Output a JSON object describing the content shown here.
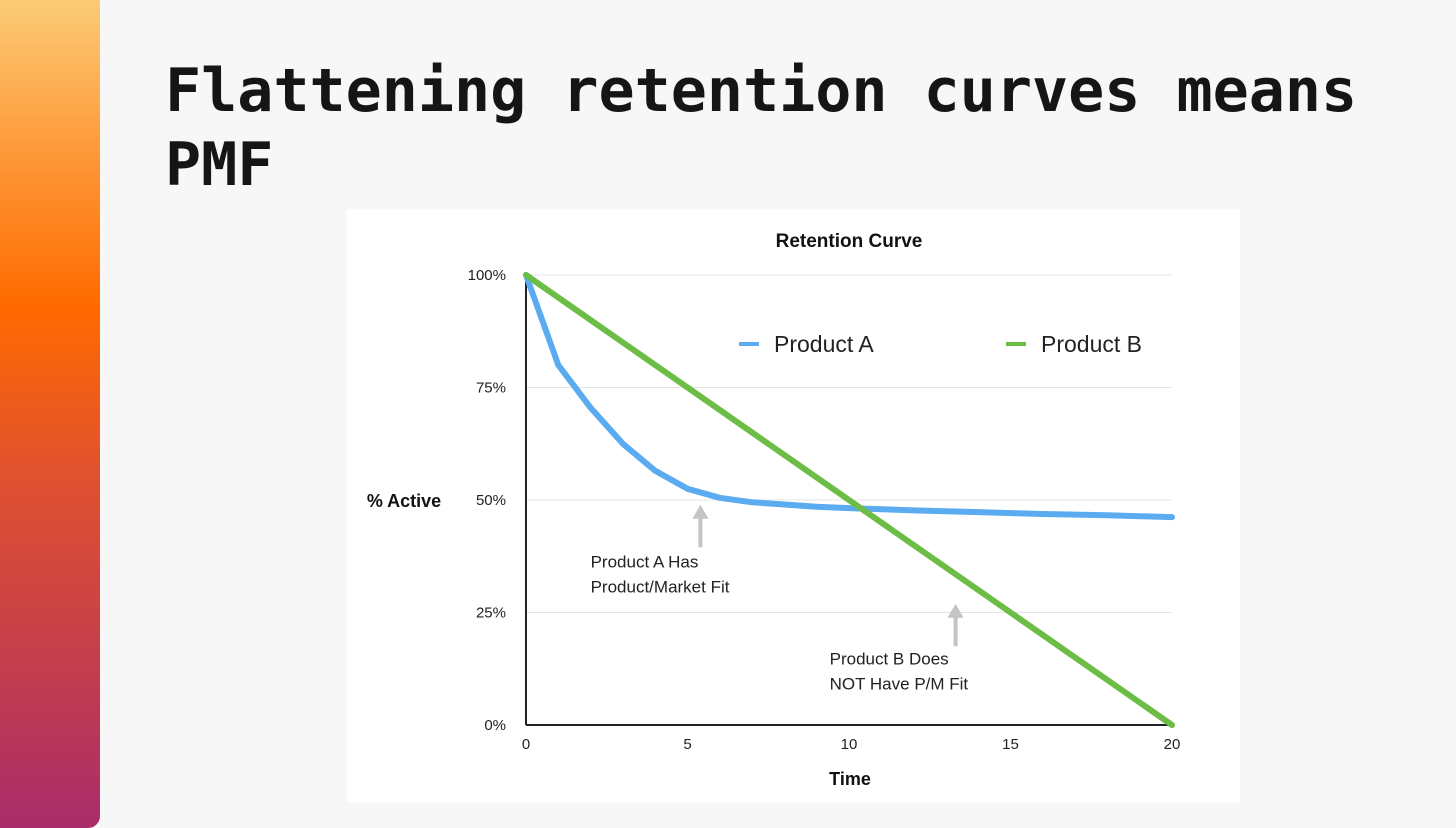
{
  "slide": {
    "title": "Flattening retention curves means PMF"
  },
  "colors": {
    "sidebar_top": "#fcd07c",
    "sidebar_mid": "#ff6a00",
    "sidebar_bottom": "#a92c6a",
    "product_a": "#5aabf0",
    "product_b": "#6cbd45",
    "arrow": "#c4c4c4"
  },
  "chart_data": {
    "type": "line",
    "title": "Retention Curve",
    "xlabel": "Time",
    "ylabel": "% Active",
    "xlim": [
      0,
      20
    ],
    "ylim": [
      0,
      100
    ],
    "x_ticks": [
      "0",
      "5",
      "10",
      "15",
      "20"
    ],
    "y_ticks": [
      "0%",
      "25%",
      "50%",
      "75%",
      "100%"
    ],
    "grid": "horizontal",
    "legend_position": "top-right",
    "series": [
      {
        "name": "Product A",
        "color": "#5aabf0",
        "x": [
          0,
          1,
          2,
          3,
          4,
          5,
          6,
          7,
          8,
          9,
          10,
          12,
          14,
          16,
          18,
          20
        ],
        "y": [
          100,
          80,
          70.5,
          62.5,
          56.5,
          52.5,
          50.5,
          49.5,
          49,
          48.5,
          48.2,
          47.7,
          47.3,
          46.9,
          46.6,
          46.2
        ]
      },
      {
        "name": "Product B",
        "color": "#6cbd45",
        "x": [
          0,
          20
        ],
        "y": [
          100,
          0
        ]
      }
    ],
    "annotations": [
      {
        "lines": [
          "Product A Has",
          "Product/Market Fit"
        ],
        "text_x": 2,
        "text_y": 35,
        "arrow_x": 5.4,
        "arrow_from_y": 39.5,
        "arrow_to_y": 48.5
      },
      {
        "lines": [
          "Product B Does",
          "NOT Have P/M Fit"
        ],
        "text_x": 9.4,
        "text_y": 13.5,
        "arrow_x": 13.3,
        "arrow_from_y": 17.5,
        "arrow_to_y": 26.5
      }
    ]
  }
}
